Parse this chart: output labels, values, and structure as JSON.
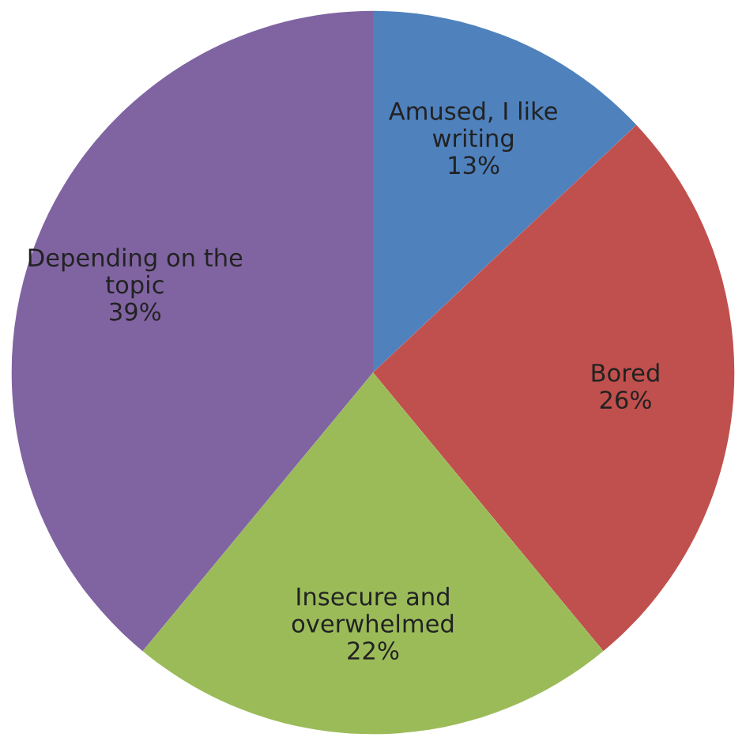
{
  "chart_data": {
    "type": "pie",
    "categories": [
      "Amused, I like\nwriting",
      "Bored",
      "Insecure and\noverwhelmed",
      "Depending on the\ntopic"
    ],
    "values": [
      13,
      26,
      22,
      39
    ],
    "value_labels": [
      "13%",
      "26%",
      "22%",
      "39%"
    ],
    "colors": [
      "#4f81bd",
      "#c0504d",
      "#9bbb59",
      "#8064a2"
    ],
    "legend": false
  }
}
